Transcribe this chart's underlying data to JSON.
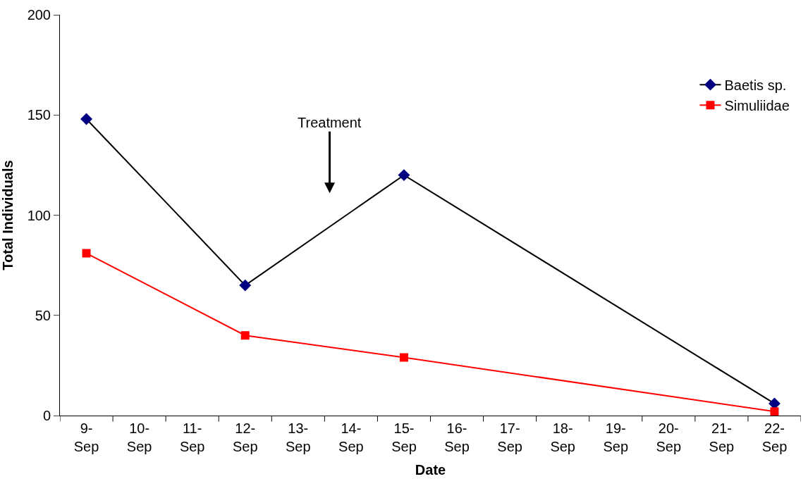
{
  "chart_data": {
    "type": "line",
    "xlabel": "Date",
    "ylabel": "Total Individuals",
    "categories": [
      "9-Sep",
      "10-Sep",
      "11-Sep",
      "12-Sep",
      "13-Sep",
      "14-Sep",
      "15-Sep",
      "16-Sep",
      "17-Sep",
      "18-Sep",
      "19-Sep",
      "20-Sep",
      "21-Sep",
      "22-Sep"
    ],
    "series": [
      {
        "name": "Baetis sp.",
        "color": "#000080",
        "marker": "diamond",
        "values": [
          148,
          null,
          null,
          65,
          null,
          null,
          120,
          null,
          null,
          null,
          null,
          null,
          null,
          6
        ]
      },
      {
        "name": "Simuliidae",
        "color": "#ff0000",
        "marker": "square",
        "values": [
          81,
          null,
          null,
          40,
          null,
          null,
          29,
          null,
          null,
          null,
          null,
          null,
          null,
          2
        ]
      }
    ],
    "ylim": [
      0,
      200
    ],
    "yticks": [
      0,
      50,
      100,
      150,
      200
    ],
    "legend": "top right",
    "annotations": [
      "Treatment"
    ]
  }
}
